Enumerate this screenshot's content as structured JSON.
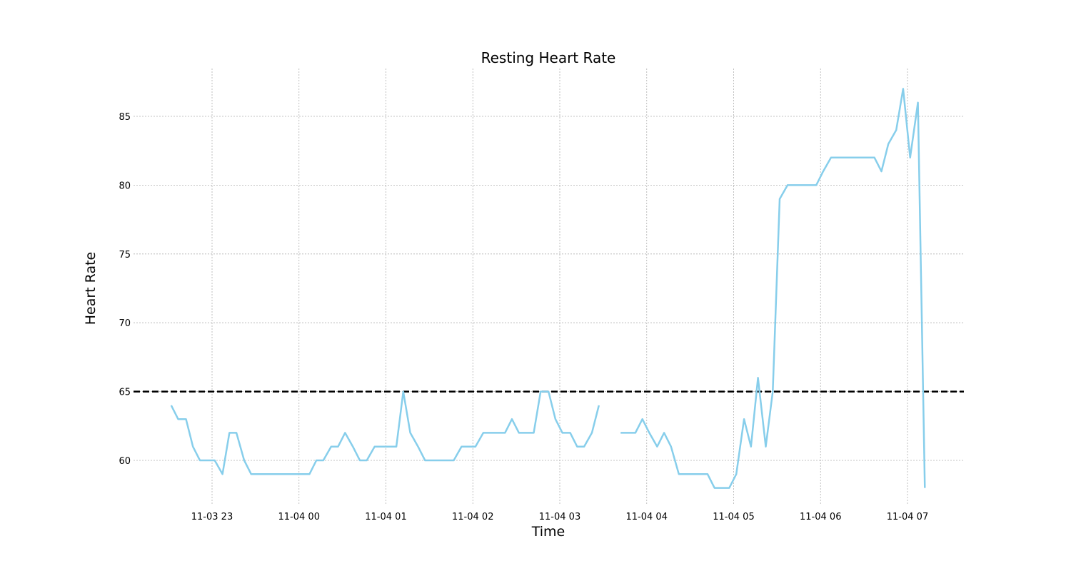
{
  "chart_data": {
    "type": "line",
    "title": "Resting Heart Rate",
    "xlabel": "Time",
    "ylabel": "Heart Rate",
    "grid": true,
    "x_unit": "hours since 11-03 22:00",
    "xlim": [
      21.53,
      30.63
    ],
    "ylim": [
      56.7,
      88.3
    ],
    "xticks": [
      {
        "value": 23,
        "label": "11-03 23"
      },
      {
        "value": 24,
        "label": "11-04 00"
      },
      {
        "value": 25,
        "label": "11-04 01"
      },
      {
        "value": 26,
        "label": "11-04 02"
      },
      {
        "value": 27,
        "label": "11-04 03"
      },
      {
        "value": 28,
        "label": "11-04 04"
      },
      {
        "value": 29,
        "label": "11-04 05"
      },
      {
        "value": 30,
        "label": "11-04 06"
      },
      {
        "value": 31,
        "label": "11-04 07"
      }
    ],
    "yticks": [
      60,
      65,
      70,
      75,
      80,
      85
    ],
    "threshold": {
      "value": 65,
      "style": "dashed",
      "color": "#000000"
    },
    "series": [
      {
        "name": "Resting Heart Rate",
        "color": "#87ceeb",
        "segments": [
          [
            [
              22.53,
              64
            ],
            [
              22.61,
              63
            ],
            [
              22.7,
              63
            ],
            [
              22.78,
              61
            ],
            [
              22.86,
              60
            ],
            [
              22.95,
              60
            ],
            [
              23.03,
              60
            ],
            [
              23.12,
              59
            ],
            [
              23.2,
              62
            ],
            [
              23.28,
              62
            ],
            [
              23.37,
              60
            ],
            [
              23.45,
              59
            ],
            [
              23.53,
              59
            ],
            [
              23.62,
              59
            ],
            [
              23.7,
              59
            ],
            [
              23.78,
              59
            ],
            [
              23.87,
              59
            ],
            [
              23.95,
              59
            ],
            [
              24.03,
              59
            ],
            [
              24.12,
              59
            ],
            [
              24.2,
              60
            ],
            [
              24.28,
              60
            ],
            [
              24.37,
              61
            ],
            [
              24.45,
              61
            ],
            [
              24.53,
              62
            ],
            [
              24.62,
              61
            ],
            [
              24.7,
              60
            ],
            [
              24.78,
              60
            ],
            [
              24.87,
              61
            ],
            [
              24.95,
              61
            ],
            [
              25.03,
              61
            ],
            [
              25.12,
              61
            ],
            [
              25.2,
              65
            ],
            [
              25.28,
              62
            ],
            [
              25.37,
              61
            ],
            [
              25.45,
              60
            ],
            [
              25.53,
              60
            ],
            [
              25.62,
              60
            ],
            [
              25.7,
              60
            ],
            [
              25.78,
              60
            ],
            [
              25.87,
              61
            ],
            [
              25.95,
              61
            ],
            [
              26.03,
              61
            ],
            [
              26.12,
              62
            ],
            [
              26.2,
              62
            ],
            [
              26.28,
              62
            ],
            [
              26.37,
              62
            ],
            [
              26.45,
              63
            ],
            [
              26.53,
              62
            ],
            [
              26.62,
              62
            ],
            [
              26.7,
              62
            ],
            [
              26.78,
              65
            ],
            [
              26.87,
              65
            ],
            [
              26.95,
              63
            ],
            [
              27.03,
              62
            ],
            [
              27.12,
              62
            ],
            [
              27.2,
              61
            ],
            [
              27.28,
              61
            ],
            [
              27.37,
              62
            ],
            [
              27.45,
              64
            ]
          ],
          [
            [
              27.7,
              62
            ],
            [
              27.78,
              62
            ],
            [
              27.87,
              62
            ],
            [
              27.95,
              63
            ],
            [
              28.03,
              62
            ],
            [
              28.12,
              61
            ],
            [
              28.2,
              62
            ],
            [
              28.28,
              61
            ],
            [
              28.37,
              59
            ],
            [
              28.45,
              59
            ],
            [
              28.53,
              59
            ],
            [
              28.62,
              59
            ],
            [
              28.7,
              59
            ],
            [
              28.78,
              58
            ],
            [
              28.87,
              58
            ],
            [
              28.95,
              58
            ],
            [
              29.03,
              59
            ],
            [
              29.12,
              63
            ],
            [
              29.2,
              61
            ],
            [
              29.28,
              66
            ],
            [
              29.37,
              61
            ],
            [
              29.45,
              65
            ],
            [
              29.53,
              79
            ],
            [
              29.62,
              80
            ],
            [
              29.7,
              80
            ],
            [
              29.78,
              80
            ],
            [
              29.87,
              80
            ],
            [
              29.95,
              80
            ],
            [
              30.03,
              81
            ],
            [
              30.12,
              82
            ],
            [
              30.2,
              82
            ],
            [
              30.28,
              82
            ],
            [
              30.37,
              82
            ],
            [
              30.45,
              82
            ],
            [
              30.53,
              82
            ],
            [
              30.62,
              82
            ],
            [
              30.7,
              81
            ],
            [
              30.78,
              83
            ],
            [
              30.87,
              84
            ],
            [
              30.95,
              87
            ],
            [
              31.03,
              82
            ],
            [
              31.12,
              86
            ],
            [
              31.2,
              58
            ]
          ]
        ]
      }
    ]
  }
}
